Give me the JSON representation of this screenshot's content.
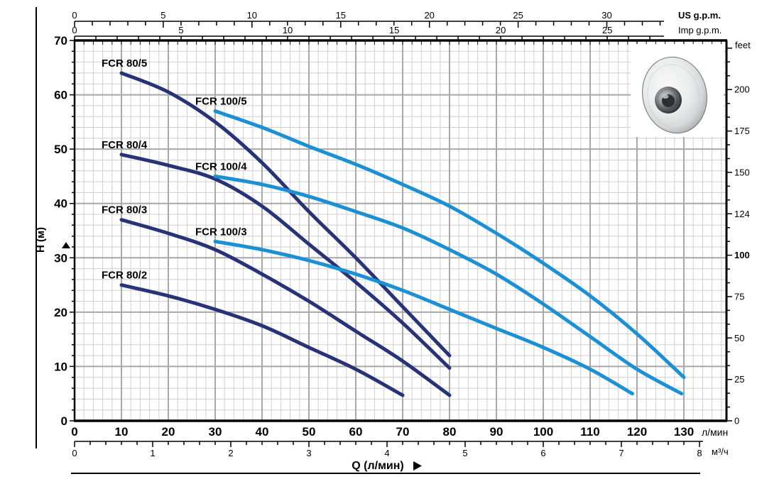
{
  "colors": {
    "navy": "#283377",
    "light_blue": "#1C90D4",
    "grid_minor": "#cfcfcf",
    "grid_major": "#a8a8a8",
    "axis": "#000000"
  },
  "chart_data": {
    "type": "line",
    "title": "",
    "xlabel": "Q (л/мин)",
    "ylabel": "H (м)",
    "xlim": [
      0,
      139
    ],
    "ylim": [
      0,
      70
    ],
    "grid": "on",
    "axes": {
      "flow_lpm": {
        "unit": "л/мин",
        "ticks": [
          0,
          10,
          20,
          30,
          40,
          50,
          60,
          70,
          80,
          90,
          100,
          110,
          120,
          130
        ]
      },
      "flow_m3h": {
        "unit": "м³/ч",
        "ticks": [
          0,
          1,
          2,
          3,
          4,
          5,
          6,
          7,
          8
        ]
      },
      "us_gpm": {
        "unit": "US g.p.m.",
        "ticks": [
          0,
          5,
          10,
          15,
          20,
          25,
          30
        ]
      },
      "imp_gpm": {
        "unit": "Imp g.p.m.",
        "ticks": [
          0,
          5,
          10,
          15,
          20,
          25
        ]
      },
      "head_m": {
        "ticks": [
          0,
          10,
          20,
          30,
          40,
          50,
          60,
          70
        ]
      },
      "head_feet": {
        "unit": "feet",
        "tick_labels": [
          "0",
          "25",
          "50",
          "75",
          "100",
          "124",
          "150",
          "175",
          "200"
        ],
        "bold_label": "100"
      }
    },
    "series": [
      {
        "name": "FCR 80/5",
        "color": "#283377",
        "points": [
          [
            10,
            64
          ],
          [
            20,
            60.5
          ],
          [
            30,
            55
          ],
          [
            40,
            47.5
          ],
          [
            50,
            38.5
          ],
          [
            60,
            30
          ],
          [
            70,
            21
          ],
          [
            80,
            12
          ]
        ]
      },
      {
        "name": "FCR 80/4",
        "color": "#283377",
        "points": [
          [
            10,
            49
          ],
          [
            20,
            47
          ],
          [
            30,
            44.5
          ],
          [
            40,
            39.5
          ],
          [
            50,
            32.5
          ],
          [
            60,
            25.5
          ],
          [
            70,
            18
          ],
          [
            80,
            9.7
          ]
        ]
      },
      {
        "name": "FCR 80/3",
        "color": "#283377",
        "points": [
          [
            10,
            37
          ],
          [
            20,
            34.5
          ],
          [
            30,
            31.5
          ],
          [
            40,
            27
          ],
          [
            50,
            22
          ],
          [
            60,
            16.5
          ],
          [
            70,
            11
          ],
          [
            80,
            4.7
          ]
        ]
      },
      {
        "name": "FCR 80/2",
        "color": "#283377",
        "points": [
          [
            10,
            25
          ],
          [
            20,
            23
          ],
          [
            30,
            20.5
          ],
          [
            40,
            17.5
          ],
          [
            50,
            13.5
          ],
          [
            60,
            9.5
          ],
          [
            70,
            4.7
          ]
        ]
      },
      {
        "name": "FCR 100/5",
        "color": "#1C90D4",
        "points": [
          [
            30,
            57
          ],
          [
            40,
            54
          ],
          [
            50,
            50.5
          ],
          [
            60,
            47.2
          ],
          [
            70,
            43.5
          ],
          [
            80,
            39.5
          ],
          [
            90,
            34.5
          ],
          [
            100,
            29
          ],
          [
            110,
            23
          ],
          [
            120,
            16
          ],
          [
            130,
            8
          ]
        ]
      },
      {
        "name": "FCR 100/4",
        "color": "#1C90D4",
        "points": [
          [
            30,
            45
          ],
          [
            40,
            43.5
          ],
          [
            50,
            41.3
          ],
          [
            60,
            38.5
          ],
          [
            70,
            35.5
          ],
          [
            80,
            31.5
          ],
          [
            90,
            27
          ],
          [
            100,
            21.5
          ],
          [
            110,
            15.5
          ],
          [
            120,
            9.5
          ],
          [
            129.5,
            5
          ]
        ]
      },
      {
        "name": "FCR 100/3",
        "color": "#1C90D4",
        "points": [
          [
            30,
            33
          ],
          [
            40,
            31.5
          ],
          [
            50,
            29.5
          ],
          [
            60,
            27
          ],
          [
            70,
            24
          ],
          [
            80,
            20.5
          ],
          [
            90,
            17
          ],
          [
            100,
            13.5
          ],
          [
            110,
            9.5
          ],
          [
            119,
            5
          ]
        ]
      }
    ]
  },
  "impeller_photo": {
    "alt": "pump impeller"
  }
}
